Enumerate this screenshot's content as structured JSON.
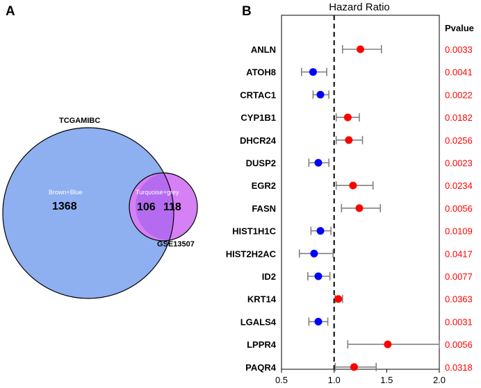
{
  "panels": {
    "a_label": "A",
    "b_label": "B"
  },
  "venn": {
    "set_large": {
      "name": "TCGAMIBC",
      "sublabel": "Brown+Blue",
      "count_only": "1368",
      "color": "#8eaff0"
    },
    "set_small": {
      "name": "GSE13507",
      "count_only": "118",
      "color": "#d580f5"
    },
    "overlap": {
      "sublabel": "Turquoise+grey",
      "count": "106",
      "color": "#b56bf0"
    }
  },
  "chart_data": {
    "type": "forest",
    "title": "Hazard Ratio",
    "pvalue_header": "Pvalue",
    "xlim": [
      0.5,
      2.0
    ],
    "xticks": [
      "0.5",
      "1.0",
      "1.5",
      "2.0"
    ],
    "reference_line": 1.0,
    "colors": {
      "risk": "#ff0000",
      "protective": "#0000ff",
      "whisker": "#808080",
      "pvalue": "#ff0000"
    },
    "rows": [
      {
        "gene": "ANLN",
        "hr": 1.25,
        "lower": 1.08,
        "upper": 1.45,
        "pvalue": "0.0033"
      },
      {
        "gene": "ATOH8",
        "hr": 0.8,
        "lower": 0.69,
        "upper": 0.93,
        "pvalue": "0.0041"
      },
      {
        "gene": "CRTAC1",
        "hr": 0.87,
        "lower": 0.8,
        "upper": 0.95,
        "pvalue": "0.0022"
      },
      {
        "gene": "CYP1B1",
        "hr": 1.13,
        "lower": 1.02,
        "upper": 1.24,
        "pvalue": "0.0182"
      },
      {
        "gene": "DHCR24",
        "hr": 1.14,
        "lower": 1.02,
        "upper": 1.27,
        "pvalue": "0.0256"
      },
      {
        "gene": "DUSP2",
        "hr": 0.85,
        "lower": 0.76,
        "upper": 0.95,
        "pvalue": "0.0023"
      },
      {
        "gene": "EGR2",
        "hr": 1.18,
        "lower": 1.02,
        "upper": 1.37,
        "pvalue": "0.0234"
      },
      {
        "gene": "FASN",
        "hr": 1.24,
        "lower": 1.07,
        "upper": 1.44,
        "pvalue": "0.0056"
      },
      {
        "gene": "HIST1H1C",
        "hr": 0.87,
        "lower": 0.78,
        "upper": 0.97,
        "pvalue": "0.0109"
      },
      {
        "gene": "HIST2H2AC",
        "hr": 0.81,
        "lower": 0.67,
        "upper": 0.99,
        "pvalue": "0.0417"
      },
      {
        "gene": "ID2",
        "hr": 0.85,
        "lower": 0.75,
        "upper": 0.96,
        "pvalue": "0.0077"
      },
      {
        "gene": "KRT14",
        "hr": 1.04,
        "lower": 1.01,
        "upper": 1.08,
        "pvalue": "0.0363"
      },
      {
        "gene": "LGALS4",
        "hr": 0.85,
        "lower": 0.76,
        "upper": 0.94,
        "pvalue": "0.0031"
      },
      {
        "gene": "LPPR4",
        "hr": 1.51,
        "lower": 1.13,
        "upper": 2.02,
        "pvalue": "0.0056"
      },
      {
        "gene": "PAQR4",
        "hr": 1.19,
        "lower": 1.01,
        "upper": 1.4,
        "pvalue": "0.0318"
      }
    ]
  }
}
